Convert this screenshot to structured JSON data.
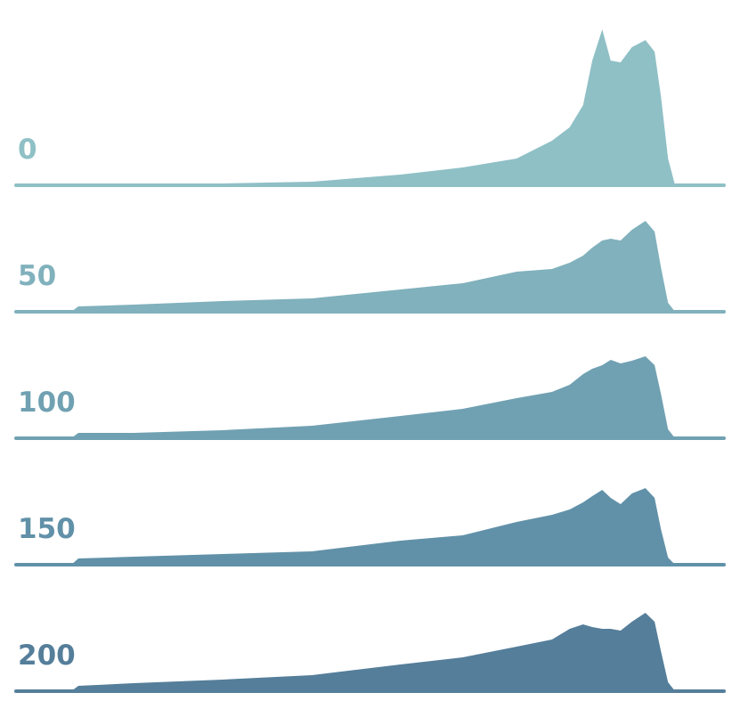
{
  "chart_data": {
    "type": "ridgeline",
    "x": [
      0,
      7.8,
      8.8,
      16.6,
      29.2,
      41.8,
      54.3,
      63.1,
      70.7,
      75.7,
      78.2,
      80.1,
      81.4,
      82.8,
      84.0,
      85.4,
      87.0,
      88.9,
      90.2,
      91.1,
      92.1,
      93.1,
      100
    ],
    "xlim": [
      0,
      100
    ],
    "ylim": [
      0,
      180
    ],
    "series": [
      {
        "name": "0",
        "color": "#8fc0c6",
        "values": [
          0,
          1,
          1,
          1,
          2,
          4,
          12,
          20,
          30,
          50,
          65,
          90,
          140,
          175,
          140,
          138,
          155,
          163,
          150,
          100,
          30,
          0,
          0
        ]
      },
      {
        "name": "50",
        "color": "#80b1bc",
        "values": [
          0,
          0,
          6,
          8,
          12,
          15,
          25,
          32,
          45,
          48,
          55,
          63,
          72,
          80,
          82,
          80,
          92,
          102,
          90,
          50,
          10,
          0,
          0
        ]
      },
      {
        "name": "100",
        "color": "#70a1b2",
        "values": [
          0,
          0,
          6,
          6,
          9,
          14,
          25,
          33,
          45,
          52,
          60,
          72,
          78,
          82,
          88,
          84,
          87,
          92,
          82,
          50,
          10,
          0,
          0
        ]
      },
      {
        "name": "150",
        "color": "#6191a8",
        "values": [
          0,
          0,
          7,
          9,
          12,
          15,
          27,
          33,
          48,
          56,
          62,
          70,
          77,
          84,
          75,
          68,
          80,
          86,
          75,
          40,
          8,
          0,
          0
        ]
      },
      {
        "name": "200",
        "color": "#557e9a",
        "values": [
          0,
          0,
          6,
          9,
          13,
          18,
          30,
          38,
          50,
          58,
          70,
          75,
          72,
          70,
          70,
          68,
          78,
          88,
          78,
          45,
          10,
          0,
          0
        ]
      }
    ]
  }
}
